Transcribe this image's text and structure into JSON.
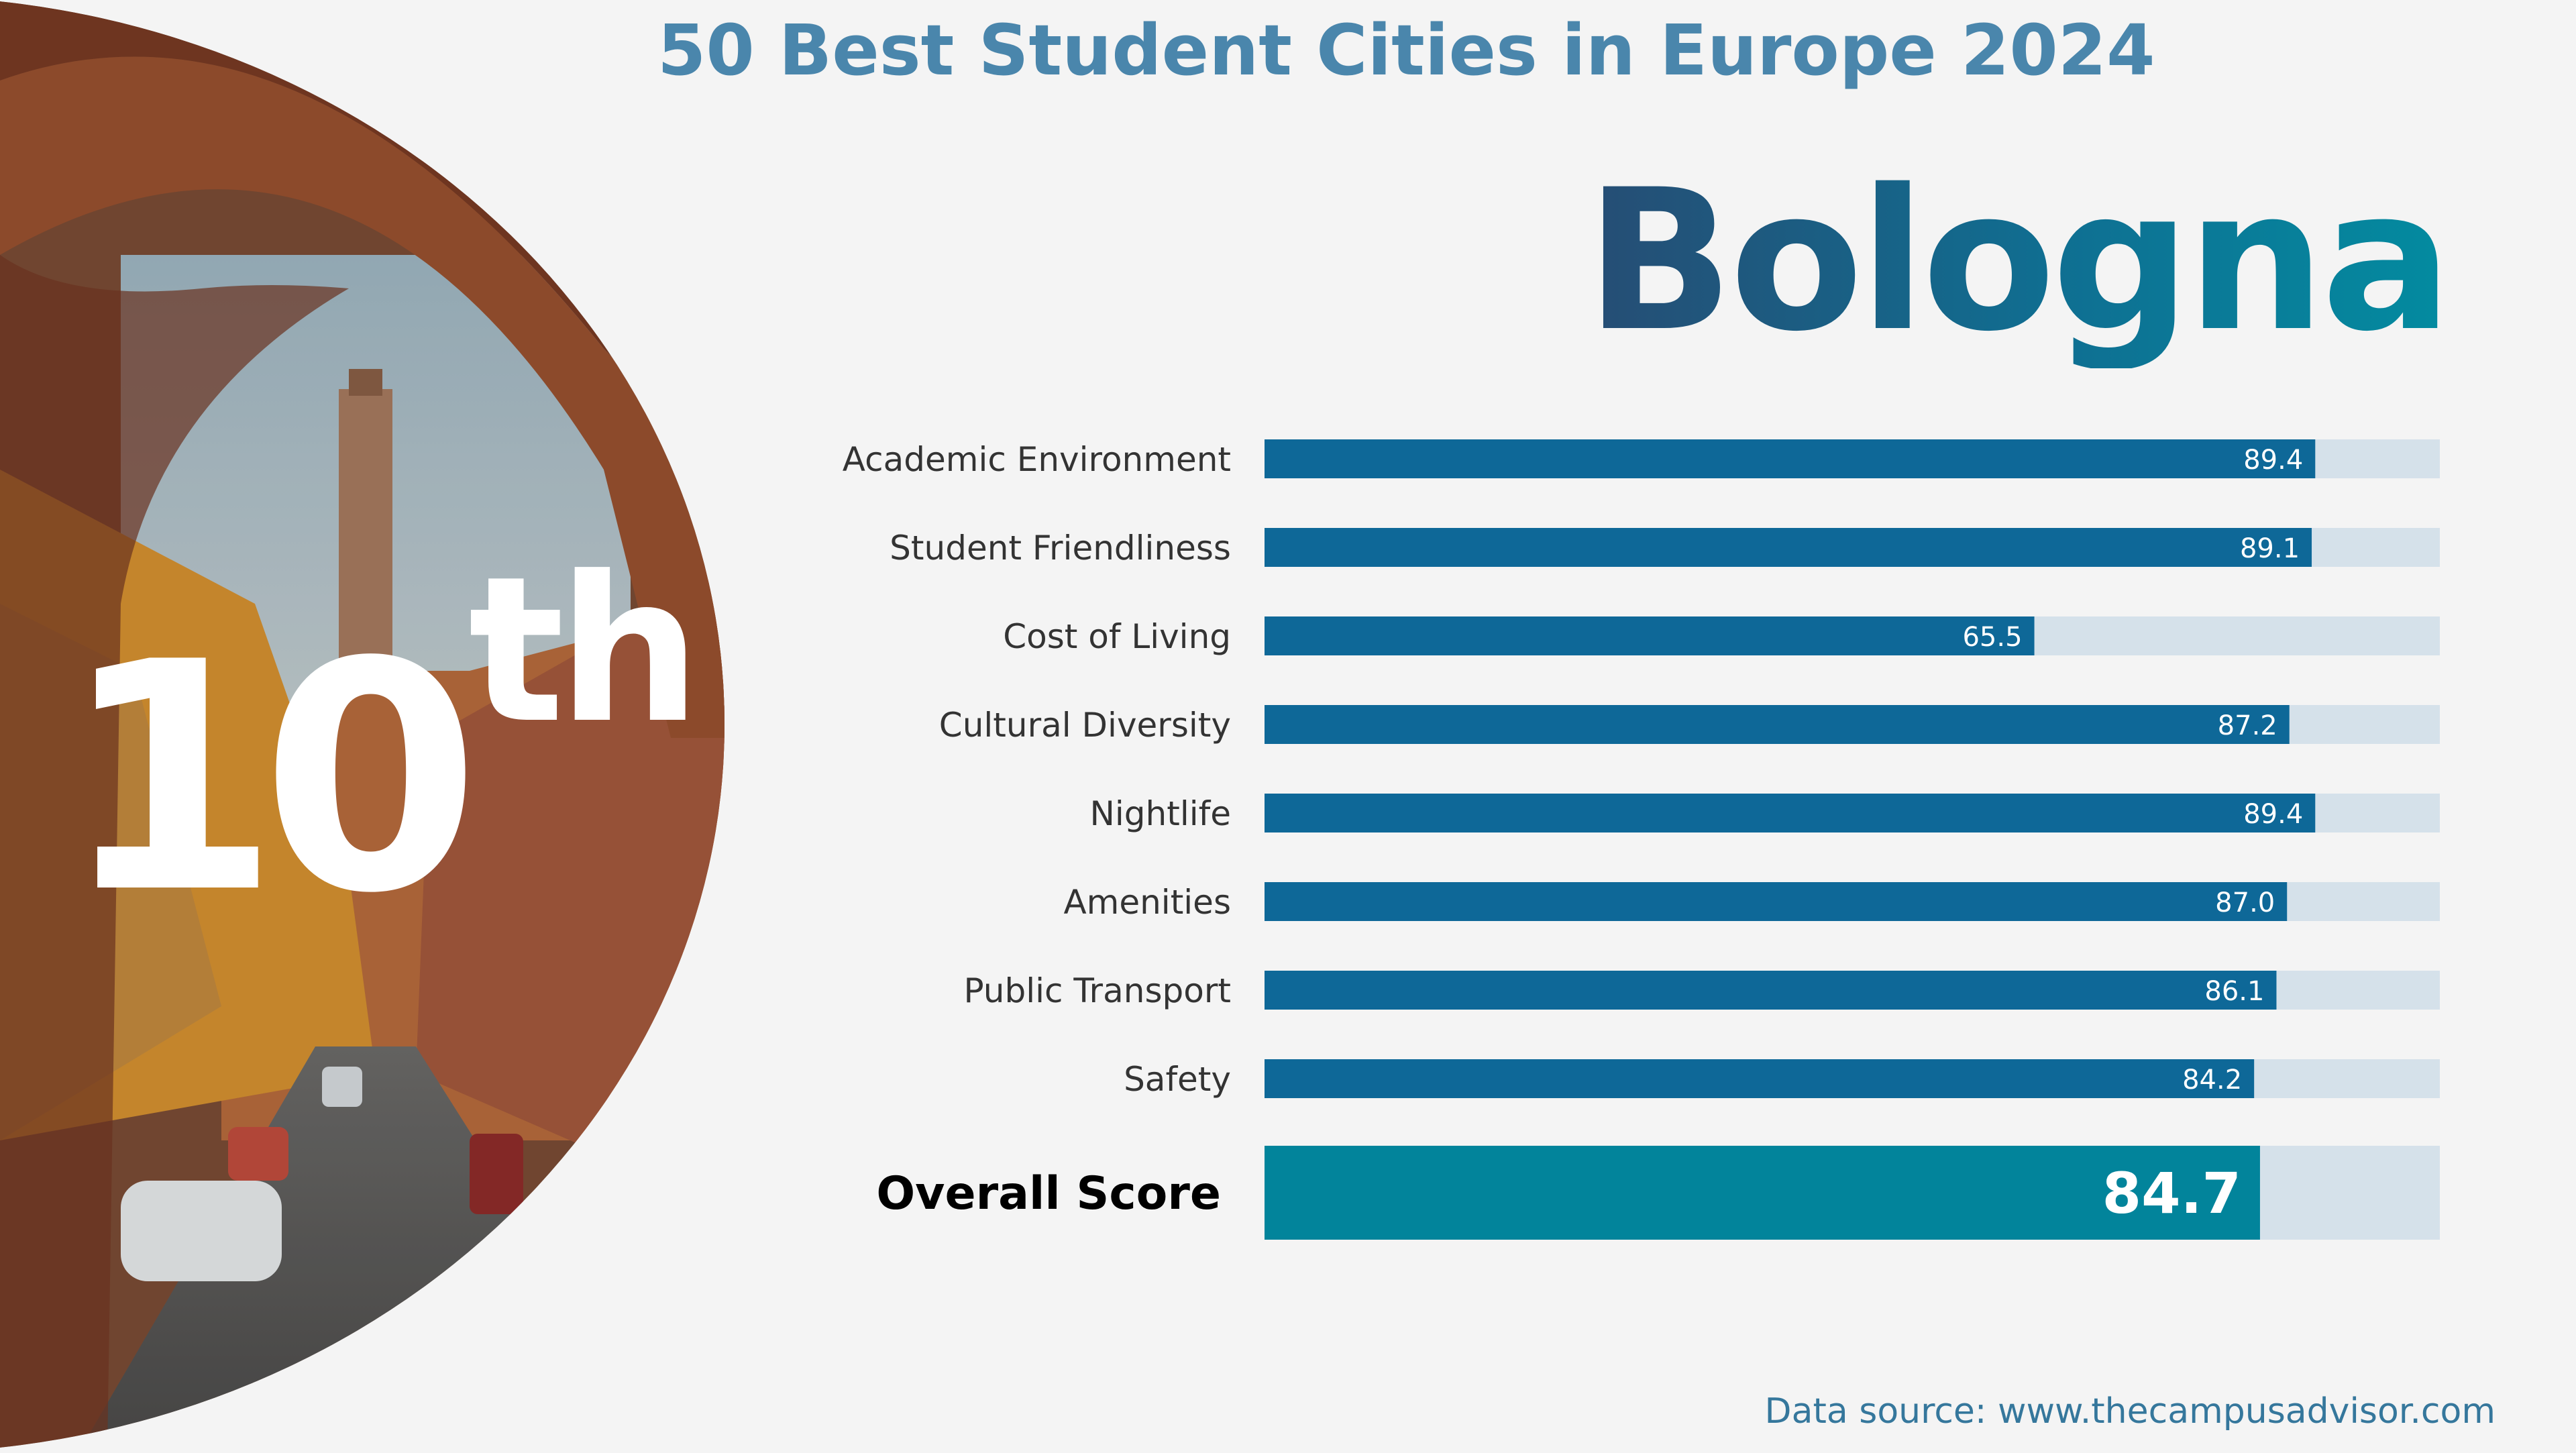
{
  "title": "50 Best Student Cities in Europe 2024",
  "city": "Bologna",
  "rank": {
    "number": "10",
    "suffix": "th"
  },
  "source": "Data source: www.thecampusadvisor.com",
  "colors": {
    "bar": "#0e6898",
    "track": "#d5e1ea",
    "overall_bar": "#02849b",
    "title": "#4a86ac"
  },
  "chart_data": {
    "type": "bar",
    "orientation": "horizontal",
    "categories": [
      "Academic Environment",
      "Student Friendliness",
      "Cost of Living",
      "Cultural Diversity",
      "Nightlife",
      "Amenities",
      "Public Transport",
      "Safety"
    ],
    "values": [
      89.4,
      89.1,
      65.5,
      87.2,
      89.4,
      87.0,
      86.1,
      84.2
    ],
    "labels": [
      "89.4",
      "89.1",
      "65.5",
      "87.2",
      "89.4",
      "87.0",
      "86.1",
      "84.2"
    ],
    "overall": {
      "label": "Overall Score",
      "value": 84.7,
      "display": "84.7"
    },
    "xlim": [
      0,
      100
    ],
    "grid": false,
    "legend": "none"
  }
}
